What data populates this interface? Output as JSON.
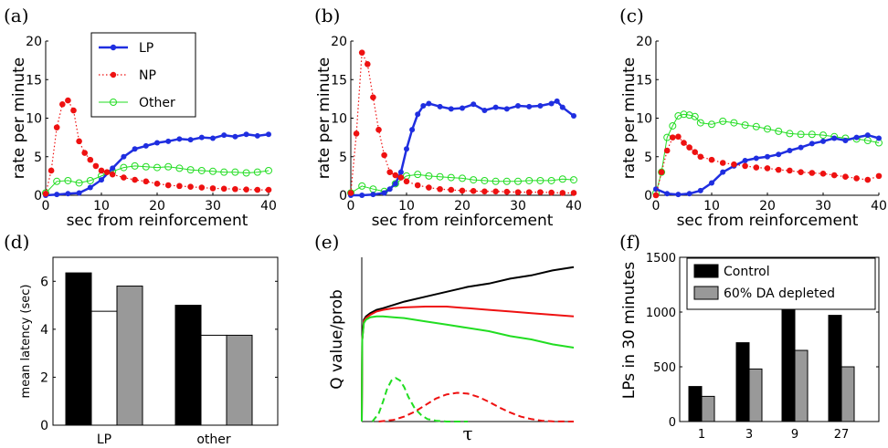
{
  "panels": {
    "a": {
      "label": "(a)"
    },
    "b": {
      "label": "(b)"
    },
    "c": {
      "label": "(c)"
    },
    "d": {
      "label": "(d)"
    },
    "e": {
      "label": "(e)"
    },
    "f": {
      "label": "(f)"
    }
  },
  "colors": {
    "LP": "#1f2ee0",
    "NP": "#ee1111",
    "Other": "#22dd22",
    "black": "#000000",
    "red": "#ee1111",
    "green": "#22dd22",
    "control": "#000000",
    "depleted": "#999999",
    "white_bar": "#ffffff"
  },
  "chart_data": [
    {
      "id": "a",
      "type": "line",
      "xlabel": "sec from reinforcement",
      "ylabel": "rate per minute",
      "xlim": [
        0,
        40
      ],
      "ylim": [
        0,
        20
      ],
      "xticks": [
        "0",
        "10",
        "20",
        "30",
        "40"
      ],
      "yticks": [
        "0",
        "5",
        "10",
        "15",
        "20"
      ],
      "legend": {
        "placement": "top-left"
      },
      "series": [
        {
          "name": "LP",
          "x": [
            0,
            2,
            4,
            6,
            8,
            10,
            12,
            14,
            16,
            18,
            20,
            22,
            24,
            26,
            28,
            30,
            32,
            34,
            36,
            38,
            40
          ],
          "y": [
            0,
            0.1,
            0.2,
            0.3,
            1,
            2,
            3.5,
            5,
            6,
            6.4,
            6.8,
            7,
            7.3,
            7.2,
            7.5,
            7.4,
            7.8,
            7.6,
            7.9,
            7.7,
            7.9
          ]
        },
        {
          "name": "NP",
          "x": [
            0,
            1,
            2,
            3,
            4,
            5,
            6,
            7,
            8,
            9,
            10,
            11,
            12,
            14,
            16,
            18,
            20,
            22,
            24,
            26,
            28,
            30,
            32,
            34,
            36,
            38,
            40
          ],
          "y": [
            0.2,
            3.2,
            8.8,
            11.8,
            12.3,
            11,
            7,
            5.5,
            4.6,
            3.8,
            3.2,
            3,
            2.7,
            2.3,
            2,
            1.8,
            1.5,
            1.3,
            1.2,
            1.1,
            1,
            0.9,
            0.85,
            0.8,
            0.75,
            0.7,
            0.7
          ]
        },
        {
          "name": "Other",
          "x": [
            0,
            2,
            4,
            6,
            8,
            10,
            12,
            14,
            16,
            18,
            20,
            22,
            24,
            26,
            28,
            30,
            32,
            34,
            36,
            38,
            40
          ],
          "y": [
            0.3,
            1.8,
            1.9,
            1.6,
            1.9,
            2.5,
            3.1,
            3.6,
            3.8,
            3.7,
            3.6,
            3.7,
            3.5,
            3.3,
            3.2,
            3.1,
            3,
            3,
            2.9,
            3,
            3.2
          ]
        }
      ]
    },
    {
      "id": "b",
      "type": "line",
      "xlabel": "sec from reinforcement",
      "ylabel": "rate per minute",
      "xlim": [
        0,
        40
      ],
      "ylim": [
        0,
        20
      ],
      "xticks": [
        "0",
        "10",
        "20",
        "30",
        "40"
      ],
      "yticks": [
        "0",
        "5",
        "10",
        "15",
        "20"
      ],
      "series": [
        {
          "name": "LP",
          "x": [
            0,
            2,
            4,
            6,
            7,
            8,
            9,
            10,
            11,
            12,
            13,
            14,
            16,
            18,
            20,
            22,
            24,
            26,
            28,
            30,
            32,
            34,
            36,
            37,
            38,
            40
          ],
          "y": [
            0,
            0,
            0.1,
            0.3,
            0.8,
            1.5,
            3,
            6,
            8.5,
            10.5,
            11.6,
            11.9,
            11.5,
            11.2,
            11.3,
            11.8,
            11,
            11.4,
            11.2,
            11.6,
            11.5,
            11.6,
            11.9,
            12.2,
            11.4,
            10.3
          ]
        },
        {
          "name": "NP",
          "x": [
            0,
            1,
            2,
            3,
            4,
            5,
            6,
            7,
            8,
            9,
            10,
            12,
            14,
            16,
            18,
            20,
            22,
            24,
            26,
            28,
            30,
            32,
            34,
            36,
            38,
            40
          ],
          "y": [
            0.3,
            8,
            18.5,
            17,
            12.7,
            8.5,
            5.2,
            3,
            2.6,
            2.3,
            1.8,
            1.3,
            1,
            0.8,
            0.7,
            0.6,
            0.55,
            0.5,
            0.5,
            0.45,
            0.4,
            0.4,
            0.4,
            0.35,
            0.3,
            0.3
          ]
        },
        {
          "name": "Other",
          "x": [
            0,
            2,
            4,
            6,
            8,
            10,
            12,
            14,
            16,
            18,
            20,
            22,
            24,
            26,
            28,
            30,
            32,
            34,
            36,
            38,
            40
          ],
          "y": [
            0.3,
            1.2,
            0.8,
            0.5,
            1.5,
            2.5,
            2.7,
            2.5,
            2.4,
            2.3,
            2.2,
            2,
            1.9,
            1.8,
            1.8,
            1.8,
            1.9,
            1.9,
            1.9,
            2.1,
            2
          ]
        }
      ]
    },
    {
      "id": "c",
      "type": "line",
      "xlabel": "sec from reinforcement",
      "ylabel": "rate per minute",
      "xlim": [
        0,
        40
      ],
      "ylim": [
        0,
        20
      ],
      "xticks": [
        "0",
        "10",
        "20",
        "30",
        "40"
      ],
      "yticks": [
        "0",
        "5",
        "10",
        "15",
        "20"
      ],
      "series": [
        {
          "name": "LP",
          "x": [
            0,
            2,
            4,
            6,
            8,
            10,
            12,
            14,
            16,
            18,
            20,
            22,
            24,
            26,
            28,
            30,
            32,
            34,
            36,
            38,
            40
          ],
          "y": [
            0.8,
            0.2,
            0.1,
            0.2,
            0.6,
            1.6,
            3,
            3.8,
            4.5,
            4.8,
            5,
            5.3,
            5.8,
            6.2,
            6.7,
            7,
            7.4,
            7.1,
            7.5,
            7.8,
            7.4
          ]
        },
        {
          "name": "NP",
          "x": [
            0,
            1,
            2,
            3,
            4,
            5,
            6,
            7,
            8,
            10,
            12,
            14,
            16,
            18,
            20,
            22,
            24,
            26,
            28,
            30,
            32,
            34,
            36,
            38,
            40
          ],
          "y": [
            0,
            3,
            5.8,
            7.5,
            7.6,
            6.8,
            6.2,
            5.6,
            5,
            4.6,
            4.2,
            4,
            3.8,
            3.6,
            3.5,
            3.3,
            3.2,
            3,
            2.9,
            2.8,
            2.6,
            2.4,
            2.2,
            2,
            2.5
          ]
        },
        {
          "name": "Other",
          "x": [
            0,
            1,
            2,
            3,
            4,
            5,
            6,
            7,
            8,
            10,
            12,
            14,
            16,
            18,
            20,
            22,
            24,
            26,
            28,
            30,
            32,
            34,
            36,
            38,
            40
          ],
          "y": [
            0.3,
            3,
            7.5,
            9,
            10.3,
            10.5,
            10.4,
            10.2,
            9.4,
            9.2,
            9.6,
            9.4,
            9.1,
            8.9,
            8.6,
            8.3,
            8,
            7.9,
            7.9,
            7.8,
            7.6,
            7.4,
            7.3,
            7.1,
            6.8
          ]
        }
      ]
    },
    {
      "id": "d",
      "type": "bar",
      "ylabel": "mean latency (sec)",
      "categories": [
        "LP",
        "other"
      ],
      "ylim": [
        0,
        7
      ],
      "yticks": [
        "0",
        "2",
        "4",
        "6"
      ],
      "series": [
        {
          "values": [
            6.35,
            5
          ]
        },
        {
          "values": [
            4.75,
            3.75
          ]
        },
        {
          "values": [
            5.8,
            3.75
          ]
        }
      ]
    },
    {
      "id": "e",
      "type": "line",
      "xlabel": "τ",
      "ylabel": "Q value/prob",
      "series": [
        {
          "color": "black",
          "style": "solid",
          "x": [
            0,
            0.002,
            0.01,
            0.02,
            0.04,
            0.07,
            0.1,
            0.15,
            0.2,
            0.3,
            0.4,
            0.5,
            0.6,
            0.7,
            0.8,
            0.9,
            1
          ],
          "y": [
            0,
            0.5,
            0.62,
            0.64,
            0.66,
            0.68,
            0.69,
            0.71,
            0.73,
            0.76,
            0.79,
            0.82,
            0.84,
            0.87,
            0.89,
            0.92,
            0.94
          ]
        },
        {
          "color": "red",
          "style": "solid",
          "x": [
            0,
            0.002,
            0.01,
            0.02,
            0.04,
            0.07,
            0.1,
            0.15,
            0.2,
            0.3,
            0.4,
            0.5,
            0.6,
            0.7,
            0.8,
            0.9,
            1
          ],
          "y": [
            0,
            0.5,
            0.61,
            0.63,
            0.65,
            0.67,
            0.68,
            0.69,
            0.695,
            0.7,
            0.7,
            0.69,
            0.68,
            0.67,
            0.66,
            0.65,
            0.64
          ]
        },
        {
          "color": "green",
          "style": "solid",
          "x": [
            0,
            0.002,
            0.01,
            0.02,
            0.04,
            0.07,
            0.1,
            0.15,
            0.2,
            0.3,
            0.4,
            0.5,
            0.6,
            0.7,
            0.8,
            0.9,
            1
          ],
          "y": [
            0,
            0.5,
            0.6,
            0.62,
            0.635,
            0.64,
            0.64,
            0.635,
            0.63,
            0.61,
            0.59,
            0.57,
            0.55,
            0.52,
            0.5,
            0.47,
            0.45
          ]
        },
        {
          "color": "green",
          "style": "dashed",
          "x": [
            0.05,
            0.08,
            0.1,
            0.12,
            0.14,
            0.16,
            0.18,
            0.2,
            0.22,
            0.25,
            0.28,
            0.31,
            0.35,
            0.4,
            0.45,
            0.5
          ],
          "y": [
            0,
            0.05,
            0.12,
            0.2,
            0.25,
            0.265,
            0.25,
            0.21,
            0.15,
            0.08,
            0.04,
            0.015,
            0.005,
            0,
            0,
            0
          ]
        },
        {
          "color": "red",
          "style": "dashed",
          "x": [
            0.08,
            0.15,
            0.2,
            0.25,
            0.3,
            0.35,
            0.4,
            0.45,
            0.5,
            0.55,
            0.6,
            0.65,
            0.7,
            0.75,
            0.8,
            0.85,
            0.9,
            1
          ],
          "y": [
            0,
            0.01,
            0.03,
            0.06,
            0.1,
            0.14,
            0.165,
            0.175,
            0.17,
            0.15,
            0.12,
            0.085,
            0.055,
            0.03,
            0.015,
            0.005,
            0.001,
            0
          ]
        }
      ]
    },
    {
      "id": "f",
      "type": "bar",
      "ylabel": "LPs in 30 minutes",
      "categories": [
        "1",
        "3",
        "9",
        "27"
      ],
      "ylim": [
        0,
        1500
      ],
      "yticks": [
        "0",
        "500",
        "1000",
        "1500"
      ],
      "legend": {
        "placement": "top"
      },
      "series": [
        {
          "name": "Control",
          "values": [
            320,
            720,
            1130,
            970
          ]
        },
        {
          "name": "60% DA depleted",
          "values": [
            230,
            480,
            650,
            500
          ]
        }
      ]
    }
  ]
}
